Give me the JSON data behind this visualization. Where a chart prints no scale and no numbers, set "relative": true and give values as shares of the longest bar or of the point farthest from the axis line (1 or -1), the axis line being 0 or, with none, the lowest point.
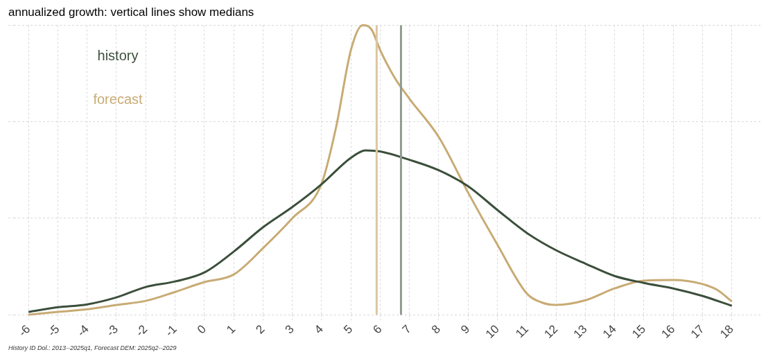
{
  "chart_data": {
    "type": "line",
    "title": "annualized growth: vertical lines show medians",
    "relative": true,
    "xlim": [
      -6.5,
      19
    ],
    "xticks": [
      -6,
      -5,
      -4,
      -3,
      -2,
      -1,
      0,
      1,
      2,
      3,
      4,
      5,
      6,
      7,
      8,
      9,
      10,
      11,
      12,
      13,
      14,
      15,
      16,
      17,
      18
    ],
    "grid": true,
    "legend": "top left",
    "marker": "none",
    "line_style": "solid",
    "series": [
      {
        "name": "history",
        "color": "#3b4f3a",
        "x": [
          -6,
          -5,
          -4,
          -3,
          -2,
          -1,
          0,
          1,
          2,
          3,
          4,
          5,
          5.5,
          6,
          7,
          8,
          9,
          10,
          11,
          12,
          13,
          14,
          15,
          16,
          17,
          18
        ],
        "values": [
          0.01,
          0.026,
          0.036,
          0.06,
          0.096,
          0.115,
          0.146,
          0.218,
          0.302,
          0.372,
          0.451,
          0.542,
          0.568,
          0.564,
          0.535,
          0.499,
          0.444,
          0.362,
          0.283,
          0.223,
          0.177,
          0.134,
          0.11,
          0.091,
          0.065,
          0.031
        ]
      },
      {
        "name": "forecast",
        "color": "#c8ab74",
        "x": [
          -6,
          -5,
          -4,
          -3,
          -2,
          -1,
          0,
          1,
          2,
          3,
          4,
          4.5,
          5,
          5.4,
          5.7,
          6,
          6.5,
          7,
          8,
          9,
          10,
          11,
          11.5,
          12,
          13,
          14,
          15,
          16,
          17,
          17.5,
          18
        ],
        "values": [
          0,
          0.01,
          0.019,
          0.034,
          0.048,
          0.079,
          0.113,
          0.139,
          0.23,
          0.333,
          0.453,
          0.65,
          0.914,
          1,
          0.986,
          0.914,
          0.818,
          0.746,
          0.614,
          0.422,
          0.242,
          0.074,
          0.043,
          0.034,
          0.05,
          0.091,
          0.118,
          0.12,
          0.106,
          0.086,
          0.046
        ]
      }
    ],
    "ref_lines": [
      {
        "axis": "x",
        "value": 5.88,
        "color": "#dcc79f"
      },
      {
        "axis": "x",
        "value": 6.71,
        "color": "#8f9c8f"
      }
    ],
    "annotations": [
      "History ID Dol.: 2013--2025q1, Forecast DEM: 2025q2--2029"
    ]
  }
}
